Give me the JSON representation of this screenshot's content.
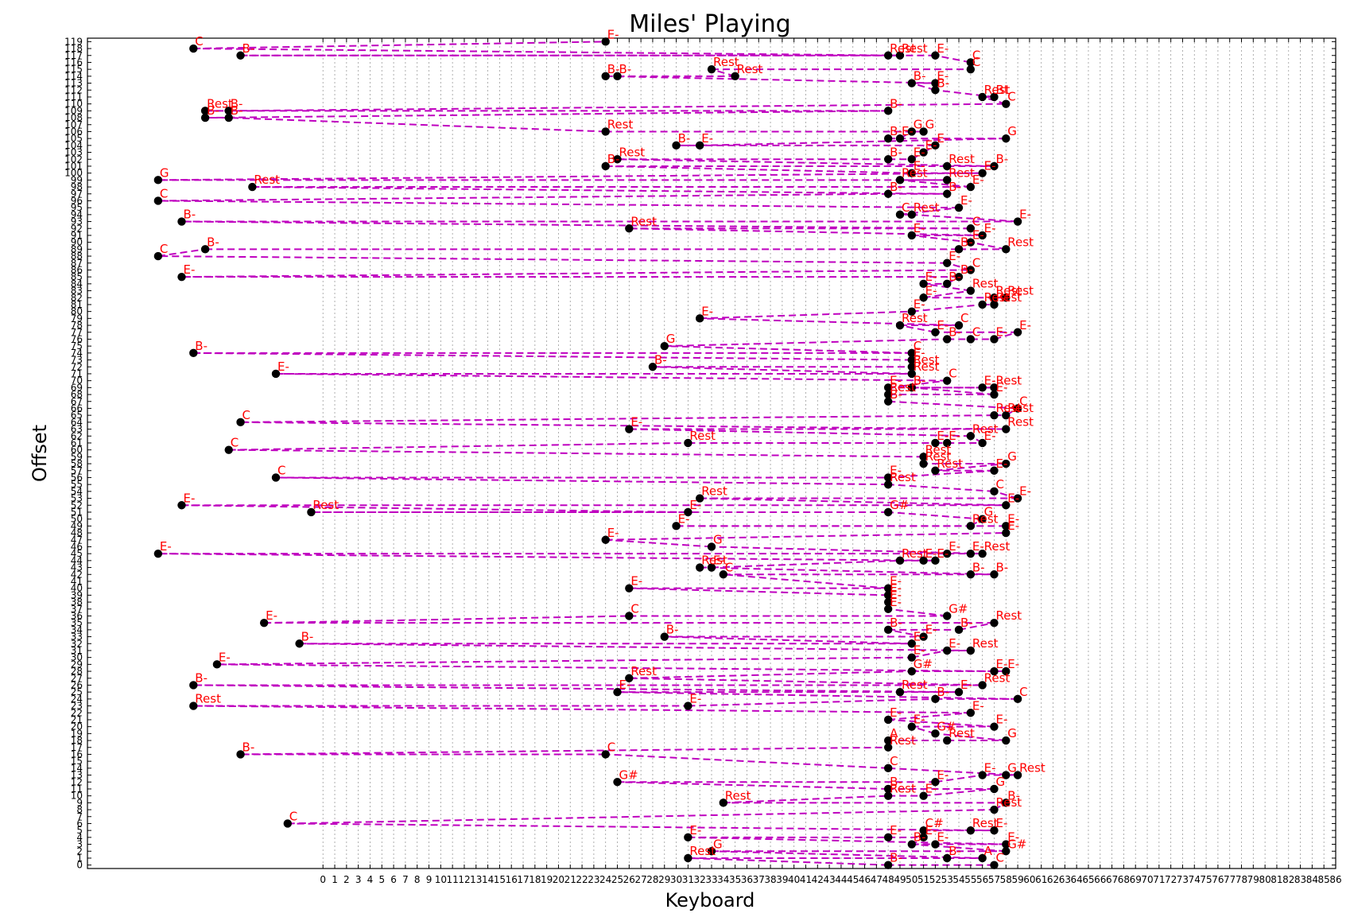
{
  "chart_data": {
    "type": "scatter",
    "title": "Miles' Playing",
    "xlabel": "Keyboard",
    "ylabel": "Offset",
    "xlim": [
      -20,
      86
    ],
    "ylim": [
      -0.5,
      119.5
    ],
    "x_ticks": [
      0,
      1,
      2,
      3,
      4,
      5,
      6,
      7,
      8,
      9,
      10,
      11,
      12,
      13,
      14,
      15,
      16,
      17,
      18,
      19,
      20,
      21,
      22,
      23,
      24,
      25,
      26,
      27,
      28,
      29,
      30,
      31,
      32,
      33,
      34,
      35,
      36,
      37,
      38,
      39,
      40,
      41,
      42,
      43,
      44,
      45,
      46,
      47,
      48,
      49,
      50,
      51,
      52,
      53,
      54,
      55,
      56,
      57,
      58,
      59,
      60,
      61,
      62,
      63,
      64,
      65,
      66,
      67,
      68,
      69,
      70,
      71,
      72,
      73,
      74,
      75,
      76,
      77,
      78,
      79,
      80,
      81,
      82,
      83,
      84,
      85,
      86
    ],
    "y_ticks": [
      0,
      1,
      2,
      3,
      4,
      5,
      6,
      7,
      8,
      9,
      10,
      11,
      12,
      13,
      14,
      15,
      16,
      17,
      18,
      19,
      20,
      21,
      22,
      23,
      24,
      25,
      26,
      27,
      28,
      29,
      30,
      31,
      32,
      33,
      34,
      35,
      36,
      37,
      38,
      39,
      40,
      41,
      42,
      43,
      44,
      45,
      46,
      47,
      48,
      49,
      50,
      51,
      52,
      53,
      54,
      55,
      56,
      57,
      58,
      59,
      60,
      61,
      62,
      63,
      64,
      65,
      66,
      67,
      68,
      69,
      70,
      71,
      72,
      73,
      74,
      75,
      76,
      77,
      78,
      79,
      80,
      81,
      82,
      83,
      84,
      85,
      86,
      87,
      88,
      89,
      90,
      91,
      92,
      93,
      94,
      95,
      96,
      97,
      98,
      99,
      100,
      101,
      102,
      103,
      104,
      105,
      106,
      107,
      108,
      109,
      110,
      111,
      112,
      113,
      114,
      115,
      116,
      117,
      118,
      119
    ],
    "grid": "vertical dotted",
    "marker_color": "#000000",
    "label_color": "#ff0000",
    "line_color": "#bf00bf",
    "line_style": "dashed",
    "points": [
      {
        "x": 57,
        "y": 0,
        "label": "C"
      },
      {
        "x": 48,
        "y": 0,
        "label": "B-"
      },
      {
        "x": 31,
        "y": 1,
        "label": "Rest"
      },
      {
        "x": 53,
        "y": 1,
        "label": "B-"
      },
      {
        "x": 56,
        "y": 1,
        "label": "A"
      },
      {
        "x": 33,
        "y": 2,
        "label": "G"
      },
      {
        "x": 58,
        "y": 2,
        "label": "G#"
      },
      {
        "x": 50,
        "y": 3,
        "label": "B-"
      },
      {
        "x": 52,
        "y": 3,
        "label": "E-"
      },
      {
        "x": 58,
        "y": 3,
        "label": "E-"
      },
      {
        "x": 31,
        "y": 4,
        "label": "E-"
      },
      {
        "x": 48,
        "y": 4,
        "label": "E-"
      },
      {
        "x": 51,
        "y": 4,
        "label": "E-"
      },
      {
        "x": 51,
        "y": 5,
        "label": "C#"
      },
      {
        "x": 55,
        "y": 5,
        "label": "Rest"
      },
      {
        "x": 57,
        "y": 5,
        "label": "E-"
      },
      {
        "x": -3,
        "y": 6,
        "label": "C"
      },
      {
        "x": 57,
        "y": 8,
        "label": "Rest"
      },
      {
        "x": 58,
        "y": 9,
        "label": "B-"
      },
      {
        "x": 34,
        "y": 9,
        "label": "Rest"
      },
      {
        "x": 48,
        "y": 10,
        "label": "Rest"
      },
      {
        "x": 51,
        "y": 10,
        "label": "E-"
      },
      {
        "x": 57,
        "y": 11,
        "label": "G"
      },
      {
        "x": 25,
        "y": 12,
        "label": "G#"
      },
      {
        "x": 48,
        "y": 11,
        "label": "B-"
      },
      {
        "x": 52,
        "y": 12,
        "label": "E-"
      },
      {
        "x": 56,
        "y": 13,
        "label": "E-"
      },
      {
        "x": 58,
        "y": 13,
        "label": "G"
      },
      {
        "x": 59,
        "y": 13,
        "label": "Rest"
      },
      {
        "x": 48,
        "y": 14,
        "label": "C"
      },
      {
        "x": 24,
        "y": 16,
        "label": "C"
      },
      {
        "x": -7,
        "y": 16,
        "label": "B-"
      },
      {
        "x": 48,
        "y": 17,
        "label": "Rest"
      },
      {
        "x": 48,
        "y": 18,
        "label": "A"
      },
      {
        "x": 53,
        "y": 18,
        "label": "Rest"
      },
      {
        "x": 58,
        "y": 18,
        "label": "G"
      },
      {
        "x": 52,
        "y": 19,
        "label": "G#"
      },
      {
        "x": 50,
        "y": 20,
        "label": "E-"
      },
      {
        "x": 57,
        "y": 20,
        "label": "E-"
      },
      {
        "x": 48,
        "y": 21,
        "label": "E-"
      },
      {
        "x": 55,
        "y": 22,
        "label": "E-"
      },
      {
        "x": -11,
        "y": 23,
        "label": "Rest"
      },
      {
        "x": 31,
        "y": 23,
        "label": "E-"
      },
      {
        "x": 52,
        "y": 24,
        "label": "B-"
      },
      {
        "x": 59,
        "y": 24,
        "label": "C"
      },
      {
        "x": 25,
        "y": 25,
        "label": "E-"
      },
      {
        "x": 49,
        "y": 25,
        "label": "Rest"
      },
      {
        "x": 54,
        "y": 25,
        "label": "E-"
      },
      {
        "x": -11,
        "y": 26,
        "label": "B-"
      },
      {
        "x": 56,
        "y": 26,
        "label": "Rest"
      },
      {
        "x": 26,
        "y": 27,
        "label": "Rest"
      },
      {
        "x": 50,
        "y": 28,
        "label": "G#"
      },
      {
        "x": 57,
        "y": 28,
        "label": "E-"
      },
      {
        "x": 58,
        "y": 28,
        "label": "E-"
      },
      {
        "x": -9,
        "y": 29,
        "label": "E-"
      },
      {
        "x": 50,
        "y": 30,
        "label": "E-"
      },
      {
        "x": 53,
        "y": 31,
        "label": "E-"
      },
      {
        "x": 55,
        "y": 31,
        "label": "Rest"
      },
      {
        "x": -2,
        "y": 32,
        "label": "B-"
      },
      {
        "x": 29,
        "y": 33,
        "label": "B-"
      },
      {
        "x": 50,
        "y": 32,
        "label": "E-"
      },
      {
        "x": 51,
        "y": 33,
        "label": "E-"
      },
      {
        "x": 48,
        "y": 34,
        "label": "B-"
      },
      {
        "x": 54,
        "y": 34,
        "label": "B-"
      },
      {
        "x": 57,
        "y": 35,
        "label": "Rest"
      },
      {
        "x": -5,
        "y": 35,
        "label": "E-"
      },
      {
        "x": 26,
        "y": 36,
        "label": "C"
      },
      {
        "x": 53,
        "y": 36,
        "label": "G#"
      },
      {
        "x": 48,
        "y": 37,
        "label": "E-"
      },
      {
        "x": 48,
        "y": 38,
        "label": "E-"
      },
      {
        "x": 48,
        "y": 39,
        "label": "E-"
      },
      {
        "x": 26,
        "y": 40,
        "label": "E-"
      },
      {
        "x": 48,
        "y": 40,
        "label": "E-"
      },
      {
        "x": 34,
        "y": 42,
        "label": "C"
      },
      {
        "x": 55,
        "y": 42,
        "label": "B-"
      },
      {
        "x": 57,
        "y": 42,
        "label": "B-"
      },
      {
        "x": 32,
        "y": 43,
        "label": "Rest"
      },
      {
        "x": 33,
        "y": 43,
        "label": "E-"
      },
      {
        "x": -14,
        "y": 45,
        "label": "E-"
      },
      {
        "x": 49,
        "y": 44,
        "label": "Rest"
      },
      {
        "x": 51,
        "y": 44,
        "label": "E-"
      },
      {
        "x": 52,
        "y": 44,
        "label": "E-"
      },
      {
        "x": 53,
        "y": 45,
        "label": "E-"
      },
      {
        "x": 55,
        "y": 45,
        "label": "E-"
      },
      {
        "x": 56,
        "y": 45,
        "label": "Rest"
      },
      {
        "x": 33,
        "y": 46,
        "label": "G"
      },
      {
        "x": 24,
        "y": 47,
        "label": "E-"
      },
      {
        "x": 58,
        "y": 48,
        "label": "E-"
      },
      {
        "x": 58,
        "y": 49,
        "label": "E-"
      },
      {
        "x": 30,
        "y": 49,
        "label": "E-"
      },
      {
        "x": 55,
        "y": 49,
        "label": "Rest"
      },
      {
        "x": 56,
        "y": 50,
        "label": "G"
      },
      {
        "x": 48,
        "y": 51,
        "label": "G#"
      },
      {
        "x": -1,
        "y": 51,
        "label": "Rest"
      },
      {
        "x": 31,
        "y": 51,
        "label": "E-"
      },
      {
        "x": -12,
        "y": 52,
        "label": "E-"
      },
      {
        "x": 32,
        "y": 53,
        "label": "Rest"
      },
      {
        "x": 58,
        "y": 52,
        "label": "E-"
      },
      {
        "x": 59,
        "y": 53,
        "label": "E-"
      },
      {
        "x": 57,
        "y": 54,
        "label": "C"
      },
      {
        "x": 48,
        "y": 55,
        "label": "Rest"
      },
      {
        "x": -4,
        "y": 56,
        "label": "C"
      },
      {
        "x": 48,
        "y": 56,
        "label": "E-"
      },
      {
        "x": 57,
        "y": 57,
        "label": "E-"
      },
      {
        "x": 58,
        "y": 58,
        "label": "G"
      },
      {
        "x": 51,
        "y": 58,
        "label": "Rest"
      },
      {
        "x": 52,
        "y": 57,
        "label": "Rest"
      },
      {
        "x": 51,
        "y": 59,
        "label": "Rest"
      },
      {
        "x": -8,
        "y": 60,
        "label": "C"
      },
      {
        "x": 31,
        "y": 61,
        "label": "Rest"
      },
      {
        "x": 52,
        "y": 61,
        "label": "E-"
      },
      {
        "x": 53,
        "y": 61,
        "label": "E-"
      },
      {
        "x": 56,
        "y": 61,
        "label": "E-"
      },
      {
        "x": 55,
        "y": 62,
        "label": "Rest"
      },
      {
        "x": 26,
        "y": 63,
        "label": "E-"
      },
      {
        "x": 58,
        "y": 63,
        "label": "Rest"
      },
      {
        "x": -7,
        "y": 64,
        "label": "C"
      },
      {
        "x": 57,
        "y": 65,
        "label": "Rest"
      },
      {
        "x": 58,
        "y": 65,
        "label": "Rest"
      },
      {
        "x": 59,
        "y": 66,
        "label": "C"
      },
      {
        "x": 48,
        "y": 67,
        "label": "B-"
      },
      {
        "x": 48,
        "y": 68,
        "label": "Rest"
      },
      {
        "x": 50,
        "y": 69,
        "label": "B-"
      },
      {
        "x": 57,
        "y": 68,
        "label": "E-"
      },
      {
        "x": 56,
        "y": 69,
        "label": "E-"
      },
      {
        "x": 57,
        "y": 69,
        "label": "Rest"
      },
      {
        "x": 48,
        "y": 69,
        "label": "E-"
      },
      {
        "x": 53,
        "y": 70,
        "label": "C"
      },
      {
        "x": -4,
        "y": 71,
        "label": "E-"
      },
      {
        "x": 50,
        "y": 71,
        "label": "Rest"
      },
      {
        "x": 28,
        "y": 72,
        "label": "B-"
      },
      {
        "x": 50,
        "y": 72,
        "label": "Rest"
      },
      {
        "x": -11,
        "y": 74,
        "label": "B-"
      },
      {
        "x": 50,
        "y": 73,
        "label": "E-"
      },
      {
        "x": 50,
        "y": 74,
        "label": "C"
      },
      {
        "x": 29,
        "y": 75,
        "label": "G"
      },
      {
        "x": 53,
        "y": 76,
        "label": "B-"
      },
      {
        "x": 55,
        "y": 76,
        "label": "C"
      },
      {
        "x": 57,
        "y": 76,
        "label": "E-"
      },
      {
        "x": 59,
        "y": 77,
        "label": "E-"
      },
      {
        "x": 52,
        "y": 77,
        "label": "E-"
      },
      {
        "x": 49,
        "y": 78,
        "label": "Rest"
      },
      {
        "x": 54,
        "y": 78,
        "label": "C"
      },
      {
        "x": 32,
        "y": 79,
        "label": "E-"
      },
      {
        "x": 50,
        "y": 80,
        "label": "E-"
      },
      {
        "x": 56,
        "y": 81,
        "label": "Rest"
      },
      {
        "x": 57,
        "y": 81,
        "label": "Rest"
      },
      {
        "x": 57,
        "y": 82,
        "label": "Rest"
      },
      {
        "x": 58,
        "y": 82,
        "label": "Rest"
      },
      {
        "x": 51,
        "y": 82,
        "label": "E-"
      },
      {
        "x": 55,
        "y": 83,
        "label": "Rest"
      },
      {
        "x": 51,
        "y": 84,
        "label": "E-"
      },
      {
        "x": 53,
        "y": 84,
        "label": "B-"
      },
      {
        "x": 54,
        "y": 85,
        "label": "B-"
      },
      {
        "x": -12,
        "y": 85,
        "label": "E-"
      },
      {
        "x": 55,
        "y": 86,
        "label": "C"
      },
      {
        "x": 53,
        "y": 87,
        "label": "E-"
      },
      {
        "x": -14,
        "y": 88,
        "label": "C"
      },
      {
        "x": -10,
        "y": 89,
        "label": "B-"
      },
      {
        "x": 54,
        "y": 89,
        "label": "B-"
      },
      {
        "x": 58,
        "y": 89,
        "label": "Rest"
      },
      {
        "x": 55,
        "y": 90,
        "label": "E-"
      },
      {
        "x": 50,
        "y": 91,
        "label": "E-"
      },
      {
        "x": 56,
        "y": 91,
        "label": "E-"
      },
      {
        "x": 26,
        "y": 92,
        "label": "Rest"
      },
      {
        "x": 55,
        "y": 92,
        "label": "C"
      },
      {
        "x": -12,
        "y": 93,
        "label": "B-"
      },
      {
        "x": 59,
        "y": 93,
        "label": "E-"
      },
      {
        "x": 50,
        "y": 94,
        "label": "Rest"
      },
      {
        "x": 49,
        "y": 94,
        "label": "C"
      },
      {
        "x": 54,
        "y": 95,
        "label": "E-"
      },
      {
        "x": -14,
        "y": 96,
        "label": "C"
      },
      {
        "x": 48,
        "y": 97,
        "label": "B-"
      },
      {
        "x": 53,
        "y": 97,
        "label": "B-"
      },
      {
        "x": -6,
        "y": 98,
        "label": "Rest"
      },
      {
        "x": 55,
        "y": 98,
        "label": "E-"
      },
      {
        "x": 49,
        "y": 99,
        "label": "Rest"
      },
      {
        "x": 53,
        "y": 99,
        "label": "Rest"
      },
      {
        "x": -14,
        "y": 99,
        "label": "G"
      },
      {
        "x": 56,
        "y": 100,
        "label": "E-"
      },
      {
        "x": 50,
        "y": 100,
        "label": "E-"
      },
      {
        "x": 24,
        "y": 101,
        "label": "B-"
      },
      {
        "x": 53,
        "y": 101,
        "label": "Rest"
      },
      {
        "x": 57,
        "y": 101,
        "label": "B-"
      },
      {
        "x": 25,
        "y": 102,
        "label": "Rest"
      },
      {
        "x": 48,
        "y": 102,
        "label": "B-"
      },
      {
        "x": 50,
        "y": 102,
        "label": "E-"
      },
      {
        "x": 51,
        "y": 103,
        "label": "E-"
      },
      {
        "x": 52,
        "y": 104,
        "label": "E-"
      },
      {
        "x": 30,
        "y": 104,
        "label": "B-"
      },
      {
        "x": 32,
        "y": 104,
        "label": "E-"
      },
      {
        "x": 58,
        "y": 105,
        "label": "G"
      },
      {
        "x": 48,
        "y": 105,
        "label": "B-"
      },
      {
        "x": 49,
        "y": 105,
        "label": "E-"
      },
      {
        "x": 50,
        "y": 106,
        "label": "G"
      },
      {
        "x": 51,
        "y": 106,
        "label": "G"
      },
      {
        "x": 24,
        "y": 106,
        "label": "Rest"
      },
      {
        "x": -8,
        "y": 108,
        "label": "B-"
      },
      {
        "x": -10,
        "y": 108,
        "label": "B-"
      },
      {
        "x": 48,
        "y": 109,
        "label": "B-"
      },
      {
        "x": -10,
        "y": 109,
        "label": "Rest"
      },
      {
        "x": -8,
        "y": 109,
        "label": "B-"
      },
      {
        "x": 58,
        "y": 110,
        "label": "C"
      },
      {
        "x": 56,
        "y": 111,
        "label": "Rest"
      },
      {
        "x": 57,
        "y": 111,
        "label": "Bt"
      },
      {
        "x": 50,
        "y": 113,
        "label": "B-"
      },
      {
        "x": 52,
        "y": 112,
        "label": "B-"
      },
      {
        "x": 52,
        "y": 113,
        "label": "E-"
      },
      {
        "x": 24,
        "y": 114,
        "label": "B-"
      },
      {
        "x": 25,
        "y": 114,
        "label": "B-"
      },
      {
        "x": 35,
        "y": 114,
        "label": "Rest"
      },
      {
        "x": 33,
        "y": 115,
        "label": "Rest"
      },
      {
        "x": 55,
        "y": 115,
        "label": "C"
      },
      {
        "x": 55,
        "y": 116,
        "label": "C"
      },
      {
        "x": 52,
        "y": 117,
        "label": "E-"
      },
      {
        "x": -7,
        "y": 117,
        "label": "B-"
      },
      {
        "x": 48,
        "y": 117,
        "label": "Rest"
      },
      {
        "x": 49,
        "y": 117,
        "label": "Rest"
      },
      {
        "x": -11,
        "y": 118,
        "label": "C"
      },
      {
        "x": 24,
        "y": 119,
        "label": "E-"
      }
    ]
  }
}
